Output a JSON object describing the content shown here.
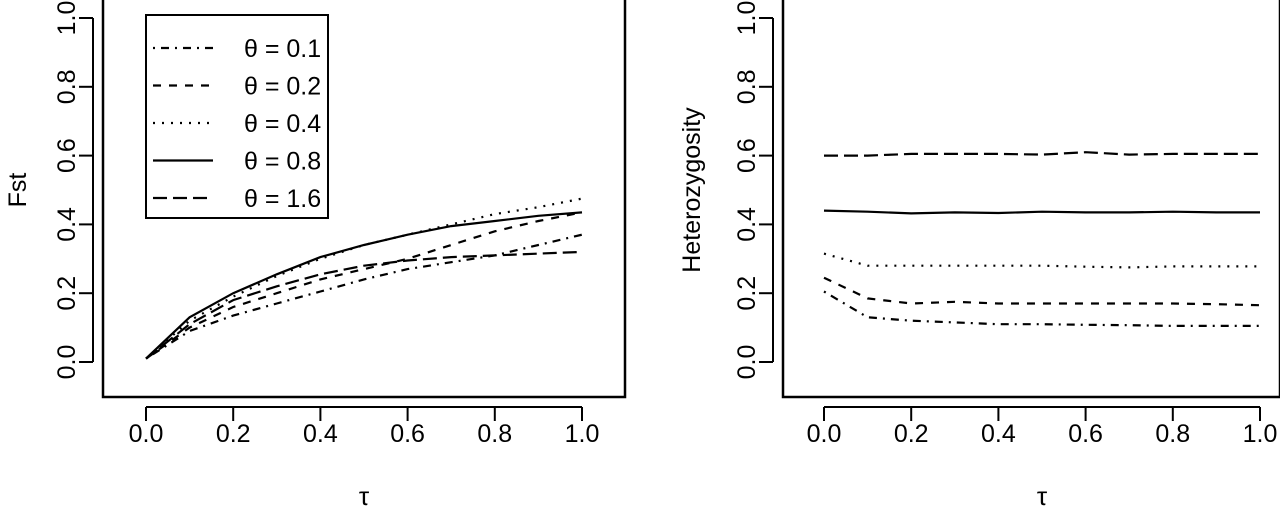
{
  "chart_data": [
    {
      "type": "line",
      "xlabel": "τ",
      "ylabel": "Fst",
      "xlim": [
        0,
        1
      ],
      "ylim": [
        0,
        1
      ],
      "xticks": [
        "0.0",
        "0.2",
        "0.4",
        "0.6",
        "0.8",
        "1.0"
      ],
      "yticks": [
        "0.0",
        "0.2",
        "0.4",
        "0.6",
        "0.8",
        "1.0"
      ],
      "grid": false,
      "legend_position": "top-left",
      "x": [
        0,
        0.1,
        0.2,
        0.3,
        0.4,
        0.5,
        0.6,
        0.7,
        0.8,
        0.9,
        1.0
      ],
      "series": [
        {
          "name": "θ = 0.1",
          "linestyle": "dotdash",
          "values": [
            0.01,
            0.09,
            0.135,
            0.17,
            0.205,
            0.24,
            0.27,
            0.29,
            0.31,
            0.34,
            0.37
          ]
        },
        {
          "name": "θ = 0.2",
          "linestyle": "dashed",
          "values": [
            0.01,
            0.1,
            0.16,
            0.2,
            0.24,
            0.27,
            0.3,
            0.34,
            0.38,
            0.41,
            0.435
          ]
        },
        {
          "name": "θ = 0.4",
          "linestyle": "dotted",
          "values": [
            0.01,
            0.12,
            0.19,
            0.25,
            0.3,
            0.34,
            0.37,
            0.4,
            0.43,
            0.45,
            0.475
          ]
        },
        {
          "name": "θ = 0.8",
          "linestyle": "solid",
          "values": [
            0.01,
            0.13,
            0.2,
            0.255,
            0.305,
            0.34,
            0.37,
            0.395,
            0.41,
            0.425,
            0.435
          ]
        },
        {
          "name": "θ = 1.6",
          "linestyle": "longdash",
          "values": [
            0.01,
            0.11,
            0.18,
            0.22,
            0.255,
            0.28,
            0.295,
            0.305,
            0.31,
            0.315,
            0.32
          ]
        }
      ]
    },
    {
      "type": "line",
      "xlabel": "τ",
      "ylabel": "Heterozygosity",
      "xlim": [
        0,
        1
      ],
      "ylim": [
        0,
        1
      ],
      "xticks": [
        "0.0",
        "0.2",
        "0.4",
        "0.6",
        "0.8",
        "1.0"
      ],
      "yticks": [
        "0.0",
        "0.2",
        "0.4",
        "0.6",
        "0.8",
        "1.0"
      ],
      "grid": false,
      "x": [
        0,
        0.1,
        0.2,
        0.3,
        0.4,
        0.5,
        0.6,
        0.7,
        0.8,
        0.9,
        1.0
      ],
      "series": [
        {
          "linestyle": "dotdash",
          "values": [
            0.205,
            0.13,
            0.12,
            0.115,
            0.11,
            0.11,
            0.108,
            0.107,
            0.105,
            0.105,
            0.105
          ]
        },
        {
          "linestyle": "dashed",
          "values": [
            0.245,
            0.185,
            0.17,
            0.175,
            0.17,
            0.17,
            0.17,
            0.17,
            0.17,
            0.168,
            0.165
          ]
        },
        {
          "linestyle": "dotted",
          "values": [
            0.315,
            0.28,
            0.28,
            0.28,
            0.28,
            0.28,
            0.277,
            0.275,
            0.278,
            0.278,
            0.278
          ]
        },
        {
          "linestyle": "solid",
          "values": [
            0.44,
            0.437,
            0.432,
            0.435,
            0.433,
            0.437,
            0.435,
            0.435,
            0.437,
            0.435,
            0.435
          ]
        },
        {
          "linestyle": "longdash",
          "values": [
            0.6,
            0.6,
            0.605,
            0.605,
            0.605,
            0.603,
            0.61,
            0.603,
            0.605,
            0.605,
            0.605
          ]
        }
      ]
    }
  ]
}
